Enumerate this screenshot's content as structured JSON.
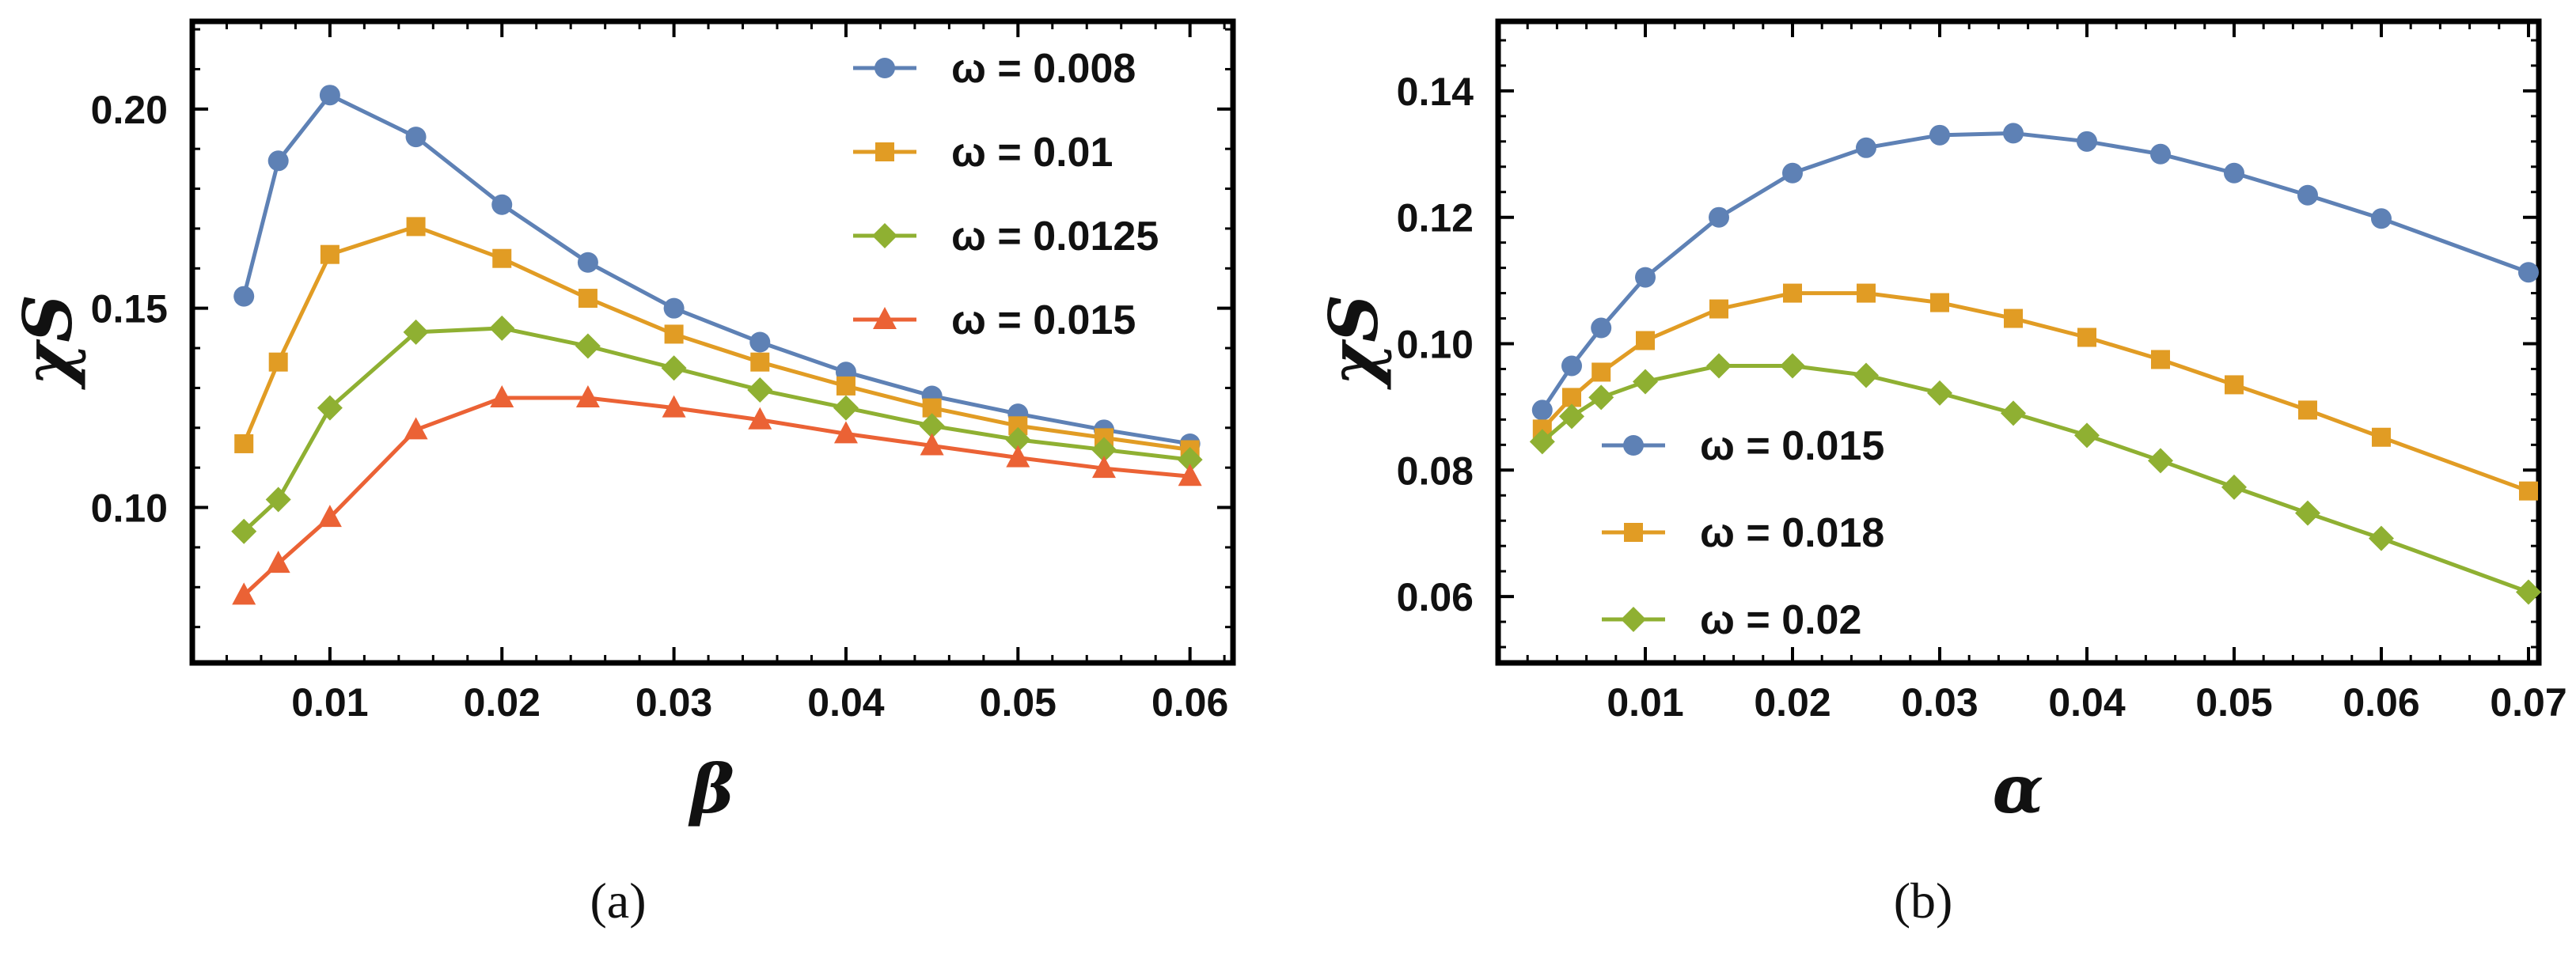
{
  "chart_data": [
    {
      "type": "line",
      "caption": "(a)",
      "xlabel": "β",
      "ylabel": "χS",
      "xlim": [
        0.002,
        0.0625
      ],
      "ylim": [
        0.061,
        0.222
      ],
      "xticks": [
        0.01,
        0.02,
        0.03,
        0.04,
        0.05,
        0.06
      ],
      "xtick_labels": [
        "0.01",
        "0.02",
        "0.03",
        "0.04",
        "0.05",
        "0.06"
      ],
      "yticks": [
        0.1,
        0.15,
        0.2
      ],
      "ytick_labels": [
        "0.10",
        "0.15",
        "0.20"
      ],
      "legend_position": "top-right",
      "x": [
        0.005,
        0.007,
        0.01,
        0.015,
        0.02,
        0.025,
        0.03,
        0.035,
        0.04,
        0.045,
        0.05,
        0.055,
        0.06
      ],
      "series": [
        {
          "name": "ω = 0.008",
          "color": "#5e81b5",
          "marker": "circle",
          "values": [
            0.153,
            0.187,
            0.2035,
            0.193,
            0.176,
            0.1615,
            0.15,
            0.1415,
            0.134,
            0.128,
            0.1235,
            0.1195,
            0.116
          ]
        },
        {
          "name": "ω = 0.01",
          "color": "#e19c24",
          "marker": "square",
          "values": [
            0.116,
            0.1365,
            0.1635,
            0.1705,
            0.1625,
            0.1525,
            0.1435,
            0.1365,
            0.1305,
            0.125,
            0.1205,
            0.1175,
            0.1145
          ]
        },
        {
          "name": "ω = 0.0125",
          "color": "#8fb032",
          "marker": "diamond",
          "values": [
            0.094,
            0.102,
            0.125,
            0.144,
            0.145,
            0.1405,
            0.135,
            0.1295,
            0.125,
            0.1205,
            0.117,
            0.1145,
            0.112
          ]
        },
        {
          "name": "ω = 0.015",
          "color": "#eb6235",
          "marker": "triangle",
          "values": [
            0.078,
            0.086,
            0.0975,
            0.1195,
            0.1275,
            0.1275,
            0.125,
            0.122,
            0.1185,
            0.1155,
            0.1125,
            0.1098,
            0.1078
          ]
        }
      ]
    },
    {
      "type": "line",
      "caption": "(b)",
      "xlabel": "α",
      "ylabel": "χS",
      "xlim": [
        0.0,
        0.0707
      ],
      "ylim": [
        0.0495,
        0.151
      ],
      "xticks": [
        0.01,
        0.02,
        0.03,
        0.04,
        0.05,
        0.06,
        0.07
      ],
      "xtick_labels": [
        "0.01",
        "0.02",
        "0.03",
        "0.04",
        "0.05",
        "0.06",
        "0.07"
      ],
      "yticks": [
        0.06,
        0.08,
        0.1,
        0.12,
        0.14
      ],
      "ytick_labels": [
        "0.06",
        "0.08",
        "0.10",
        "0.12",
        "0.14"
      ],
      "legend_position": "bottom-left",
      "x": [
        0.003,
        0.005,
        0.007,
        0.01,
        0.015,
        0.02,
        0.025,
        0.03,
        0.035,
        0.04,
        0.045,
        0.05,
        0.055,
        0.06,
        0.07
      ],
      "series": [
        {
          "name": "ω = 0.015",
          "color": "#5e81b5",
          "marker": "circle",
          "values": [
            0.0895,
            0.0965,
            0.1025,
            0.1105,
            0.12,
            0.127,
            0.131,
            0.133,
            0.1333,
            0.132,
            0.13,
            0.127,
            0.1235,
            0.1198,
            0.1113
          ]
        },
        {
          "name": "ω = 0.018",
          "color": "#e19c24",
          "marker": "square",
          "values": [
            0.0865,
            0.0915,
            0.0955,
            0.1005,
            0.1055,
            0.108,
            0.108,
            0.1065,
            0.104,
            0.101,
            0.0975,
            0.0935,
            0.0895,
            0.0852,
            0.0767
          ]
        },
        {
          "name": "ω = 0.02",
          "color": "#8fb032",
          "marker": "diamond",
          "values": [
            0.0845,
            0.0885,
            0.0915,
            0.094,
            0.0965,
            0.0965,
            0.095,
            0.0922,
            0.089,
            0.0855,
            0.0815,
            0.0773,
            0.0732,
            0.0692,
            0.0607
          ]
        }
      ]
    }
  ]
}
